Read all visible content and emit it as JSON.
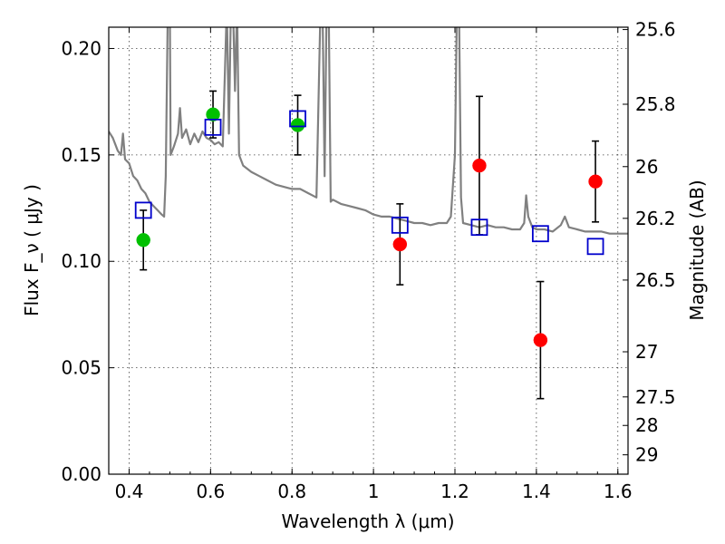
{
  "chart_data": {
    "type": "scatter",
    "xlabel": "Wavelength  λ (μm)",
    "ylabel": "Flux  F_ν  ( μJy )",
    "ylabel_right": "Magnitude (AB)",
    "xlim": [
      0.35,
      1.625
    ],
    "ylim": [
      0,
      0.21
    ],
    "grid": true,
    "x_ticks": [
      0.4,
      0.6,
      0.8,
      1.0,
      1.2,
      1.4,
      1.6
    ],
    "x_tick_labels": [
      "0.4",
      "0.6",
      "0.8",
      "1",
      "1.2",
      "1.4",
      "1.6"
    ],
    "y_ticks": [
      0.0,
      0.05,
      0.1,
      0.15,
      0.2
    ],
    "y_tick_labels": [
      "0.00",
      "0.05",
      "0.10",
      "0.15",
      "0.20"
    ],
    "right_ticks": [
      {
        "flux": 0.2089,
        "label": "25.6"
      },
      {
        "flux": 0.1738,
        "label": "25.8"
      },
      {
        "flux": 0.1445,
        "label": "26"
      },
      {
        "flux": 0.1202,
        "label": "26.2"
      },
      {
        "flux": 0.0912,
        "label": "26.5"
      },
      {
        "flux": 0.0575,
        "label": "27"
      },
      {
        "flux": 0.0363,
        "label": "27.5"
      },
      {
        "flux": 0.0229,
        "label": "28"
      },
      {
        "flux": 0.0091,
        "label": "29"
      }
    ],
    "series": [
      {
        "marker": "circle",
        "color": "#00c000",
        "points": [
          {
            "x": 0.435,
            "y": 0.11,
            "err": 0.014
          },
          {
            "x": 0.606,
            "y": 0.169,
            "err": 0.011
          },
          {
            "x": 0.814,
            "y": 0.164,
            "err": 0.014
          }
        ]
      },
      {
        "marker": "circle",
        "color": "#ff0000",
        "points": [
          {
            "x": 1.065,
            "y": 0.108,
            "err": 0.019
          },
          {
            "x": 1.26,
            "y": 0.145,
            "err": 0.0325
          },
          {
            "x": 1.41,
            "y": 0.063,
            "err": 0.0275
          },
          {
            "x": 1.545,
            "y": 0.1375,
            "err": 0.019
          }
        ]
      },
      {
        "marker": "open-square",
        "color": "#0000cc",
        "points": [
          {
            "x": 0.435,
            "y": 0.124
          },
          {
            "x": 0.606,
            "y": 0.163
          },
          {
            "x": 0.814,
            "y": 0.167
          },
          {
            "x": 1.065,
            "y": 0.117
          },
          {
            "x": 1.26,
            "y": 0.116
          },
          {
            "x": 1.41,
            "y": 0.113
          },
          {
            "x": 1.545,
            "y": 0.107
          }
        ]
      }
    ],
    "spectrum": {
      "color": "#808080",
      "points": [
        [
          0.35,
          0.161
        ],
        [
          0.36,
          0.158
        ],
        [
          0.372,
          0.152
        ],
        [
          0.38,
          0.15
        ],
        [
          0.385,
          0.16
        ],
        [
          0.39,
          0.148
        ],
        [
          0.4,
          0.146
        ],
        [
          0.41,
          0.14
        ],
        [
          0.42,
          0.138
        ],
        [
          0.43,
          0.134
        ],
        [
          0.44,
          0.132
        ],
        [
          0.45,
          0.128
        ],
        [
          0.46,
          0.126
        ],
        [
          0.47,
          0.124
        ],
        [
          0.48,
          0.122
        ],
        [
          0.486,
          0.121
        ],
        [
          0.49,
          0.14
        ],
        [
          0.495,
          0.22
        ],
        [
          0.5,
          0.22
        ],
        [
          0.502,
          0.15
        ],
        [
          0.51,
          0.154
        ],
        [
          0.52,
          0.16
        ],
        [
          0.525,
          0.172
        ],
        [
          0.53,
          0.158
        ],
        [
          0.54,
          0.162
        ],
        [
          0.55,
          0.155
        ],
        [
          0.56,
          0.16
        ],
        [
          0.57,
          0.156
        ],
        [
          0.58,
          0.161
        ],
        [
          0.59,
          0.158
        ],
        [
          0.6,
          0.157
        ],
        [
          0.61,
          0.155
        ],
        [
          0.62,
          0.156
        ],
        [
          0.63,
          0.154
        ],
        [
          0.64,
          0.22
        ],
        [
          0.645,
          0.16
        ],
        [
          0.65,
          0.22
        ],
        [
          0.655,
          0.22
        ],
        [
          0.66,
          0.18
        ],
        [
          0.665,
          0.22
        ],
        [
          0.67,
          0.15
        ],
        [
          0.68,
          0.145
        ],
        [
          0.7,
          0.142
        ],
        [
          0.72,
          0.14
        ],
        [
          0.74,
          0.138
        ],
        [
          0.76,
          0.136
        ],
        [
          0.78,
          0.135
        ],
        [
          0.8,
          0.134
        ],
        [
          0.82,
          0.134
        ],
        [
          0.84,
          0.132
        ],
        [
          0.86,
          0.13
        ],
        [
          0.87,
          0.22
        ],
        [
          0.875,
          0.22
        ],
        [
          0.88,
          0.14
        ],
        [
          0.885,
          0.22
        ],
        [
          0.89,
          0.22
        ],
        [
          0.895,
          0.128
        ],
        [
          0.9,
          0.129
        ],
        [
          0.92,
          0.127
        ],
        [
          0.94,
          0.126
        ],
        [
          0.96,
          0.125
        ],
        [
          0.98,
          0.124
        ],
        [
          1.0,
          0.122
        ],
        [
          1.02,
          0.121
        ],
        [
          1.04,
          0.121
        ],
        [
          1.06,
          0.12
        ],
        [
          1.08,
          0.119
        ],
        [
          1.1,
          0.118
        ],
        [
          1.12,
          0.118
        ],
        [
          1.14,
          0.117
        ],
        [
          1.16,
          0.118
        ],
        [
          1.18,
          0.118
        ],
        [
          1.19,
          0.121
        ],
        [
          1.2,
          0.15
        ],
        [
          1.205,
          0.22
        ],
        [
          1.21,
          0.22
        ],
        [
          1.215,
          0.13
        ],
        [
          1.22,
          0.118
        ],
        [
          1.24,
          0.117
        ],
        [
          1.26,
          0.116
        ],
        [
          1.28,
          0.117
        ],
        [
          1.3,
          0.116
        ],
        [
          1.32,
          0.116
        ],
        [
          1.34,
          0.115
        ],
        [
          1.36,
          0.115
        ],
        [
          1.37,
          0.118
        ],
        [
          1.375,
          0.131
        ],
        [
          1.38,
          0.121
        ],
        [
          1.39,
          0.116
        ],
        [
          1.4,
          0.115
        ],
        [
          1.42,
          0.115
        ],
        [
          1.44,
          0.114
        ],
        [
          1.46,
          0.117
        ],
        [
          1.47,
          0.121
        ],
        [
          1.48,
          0.116
        ],
        [
          1.5,
          0.115
        ],
        [
          1.52,
          0.114
        ],
        [
          1.54,
          0.114
        ],
        [
          1.56,
          0.114
        ],
        [
          1.58,
          0.113
        ],
        [
          1.6,
          0.113
        ],
        [
          1.625,
          0.113
        ]
      ]
    }
  }
}
